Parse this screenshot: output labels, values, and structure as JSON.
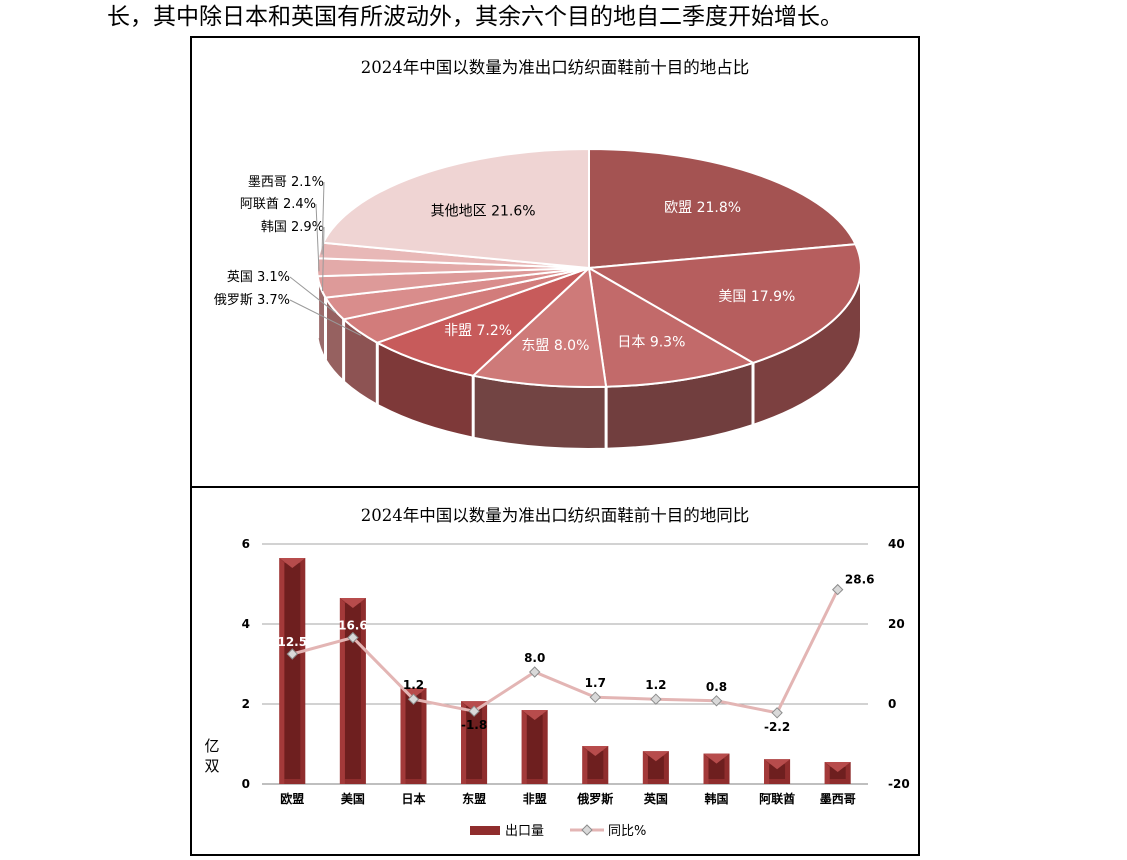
{
  "intro_text": "长，其中除日本和英国有所波动外，其余六个目的地自二季度开始增长。",
  "chart_data": [
    {
      "type": "pie",
      "title": "2024年中国以数量为准出口纺织面鞋前十目的地占比",
      "slices": [
        {
          "label": "欧盟",
          "value": 21.8,
          "text": "欧盟 21.8%",
          "color": "#a45352"
        },
        {
          "label": "美国",
          "value": 17.9,
          "text": "美国 17.9%",
          "color": "#b65e5e"
        },
        {
          "label": "日本",
          "value": 9.3,
          "text": "日本 9.3%",
          "color": "#c26a6a"
        },
        {
          "label": "东盟",
          "value": 8.0,
          "text": "东盟 8.0%",
          "color": "#ce7a79"
        },
        {
          "label": "非盟",
          "value": 7.2,
          "text": "非盟 7.2%",
          "color": "#c75b5b"
        },
        {
          "label": "俄罗斯",
          "value": 3.7,
          "text": "俄罗斯 3.7%",
          "color": "#d27c7b"
        },
        {
          "label": "英国",
          "value": 3.1,
          "text": "英国 3.1%",
          "color": "#d98d8c"
        },
        {
          "label": "韩国",
          "value": 2.9,
          "text": "韩国 2.9%",
          "color": "#dd9a99"
        },
        {
          "label": "阿联酋",
          "value": 2.4,
          "text": "阿联酋 2.4%",
          "color": "#e3aaa9"
        },
        {
          "label": "墨西哥",
          "value": 2.1,
          "text": "墨西哥 2.1%",
          "color": "#e8b8b7"
        },
        {
          "label": "其他地区",
          "value": 21.6,
          "text": "其他地区 21.6%",
          "color": "#efd4d3"
        }
      ]
    },
    {
      "type": "bar",
      "title": "2024年中国以数量为准出口纺织面鞋前十目的地同比",
      "categories": [
        "欧盟",
        "美国",
        "日本",
        "东盟",
        "非盟",
        "俄罗斯",
        "英国",
        "韩国",
        "阿联酋",
        "墨西哥"
      ],
      "series": [
        {
          "name": "出口量",
          "type": "bar",
          "axis": "left",
          "values": [
            5.65,
            4.65,
            2.4,
            2.07,
            1.85,
            0.95,
            0.82,
            0.76,
            0.62,
            0.55
          ],
          "color": "#8b2a2a"
        },
        {
          "name": "同比%",
          "type": "line",
          "axis": "right",
          "values": [
            12.5,
            16.6,
            1.2,
            -1.8,
            8.0,
            1.7,
            1.2,
            0.8,
            -2.2,
            28.6
          ],
          "labels": [
            "12.5",
            "16.6",
            "1.2",
            "-1.8",
            "8.0",
            "1.7",
            "1.2",
            "0.8",
            "-2.2",
            "28.6"
          ],
          "color": "#e3b5b4"
        }
      ],
      "ylabel": "亿双",
      "ylim": [
        0,
        6
      ],
      "yticks": [
        "0",
        "2",
        "4",
        "6"
      ],
      "y2lim": [
        -20,
        40
      ],
      "y2ticks": [
        "-20",
        "0",
        "20",
        "40"
      ],
      "grid": true,
      "legend": "bottom"
    }
  ]
}
